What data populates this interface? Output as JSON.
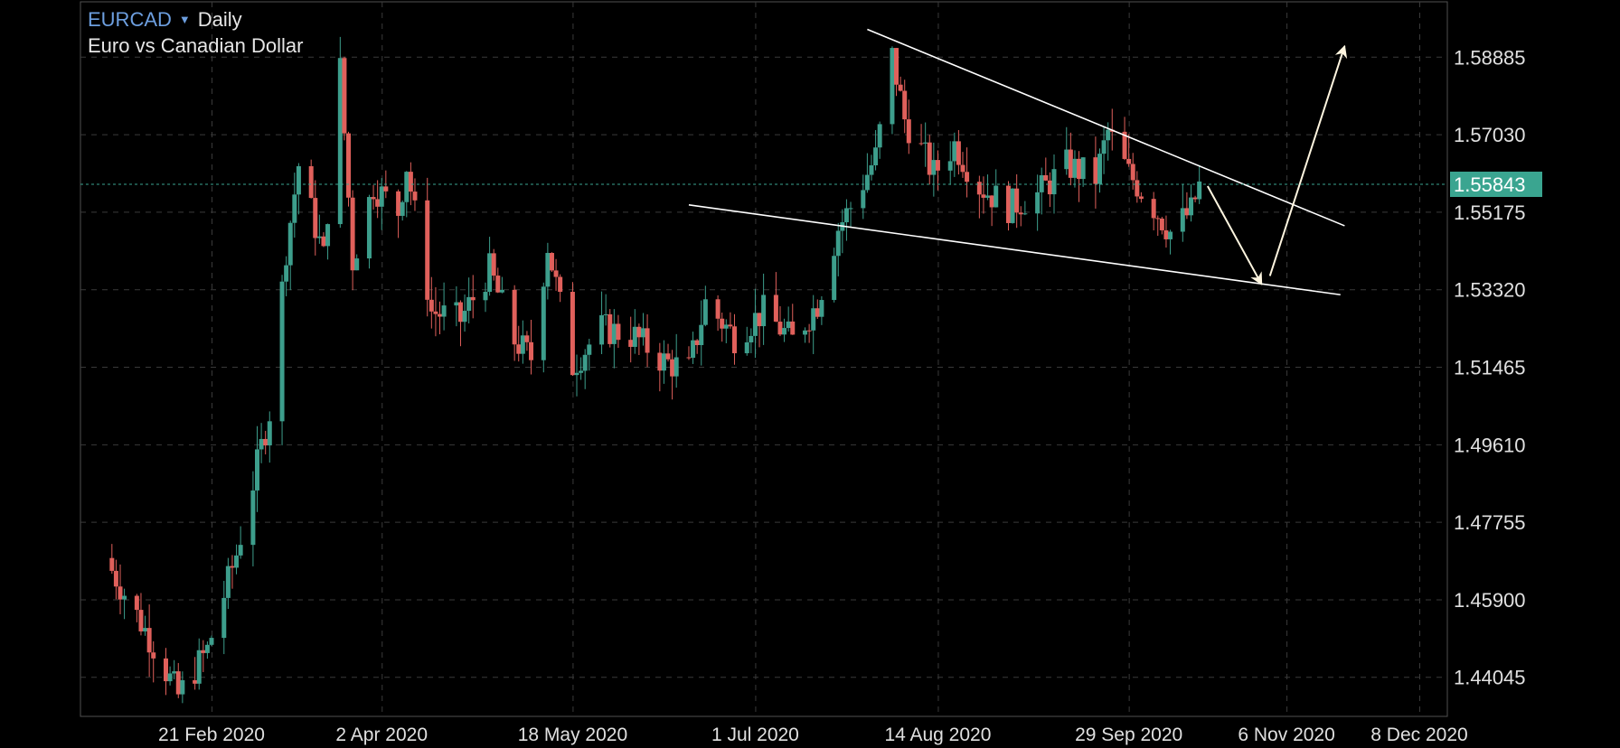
{
  "header": {
    "symbol": "EURCAD",
    "timeframe": "Daily",
    "description": "Euro vs Canadian Dollar",
    "dropdown_icon": "chevron-down-icon"
  },
  "colors": {
    "background": "#000000",
    "grid": "#3a3a3a",
    "bullish": "#3d9e8c",
    "bearish": "#e0605b",
    "current_price_bg": "#3aa590",
    "current_price_line": "#3aa590",
    "axis_text": "#e0e0e0",
    "drawings": "#ffffff",
    "arrows": "#fff6e0",
    "symbol": "#6d9fe0"
  },
  "chart_data": {
    "type": "candlestick",
    "title": "EURCAD Daily",
    "subtitle": "Euro vs Canadian Dollar",
    "grid": true,
    "ylim": [
      1.4311,
      1.6021
    ],
    "y_ticks": [
      1.58885,
      1.5703,
      1.55175,
      1.5332,
      1.51465,
      1.4961,
      1.47755,
      1.459,
      1.44045
    ],
    "y_tick_labels": [
      "1.58885",
      "1.57030",
      "1.55175",
      "1.53320",
      "1.51465",
      "1.49610",
      "1.47755",
      "1.45900",
      "1.44045"
    ],
    "x_tick_labels": [
      "21 Feb 2020",
      "2 Apr 2020",
      "18 May 2020",
      "1 Jul 2020",
      "14 Aug 2020",
      "29 Sep 2020",
      "6 Nov 2020",
      "8 Dec 2020"
    ],
    "current_price": 1.55843,
    "current_price_label": "1.55843",
    "ohlc_keypoints": [
      [
        "2020-01-28",
        1.466
      ],
      [
        "2020-02-06",
        1.45
      ],
      [
        "2020-02-13",
        1.436
      ],
      [
        "2020-02-20",
        1.447
      ],
      [
        "2020-02-27",
        1.47
      ],
      [
        "2020-03-06",
        1.504
      ],
      [
        "2020-03-10",
        1.543
      ],
      [
        "2020-03-13",
        1.563
      ],
      [
        "2020-03-19",
        1.541
      ],
      [
        "2020-03-23",
        1.586
      ],
      [
        "2020-03-26",
        1.54
      ],
      [
        "2020-03-31",
        1.558
      ],
      [
        "2020-04-06",
        1.552
      ],
      [
        "2020-04-08",
        1.563
      ],
      [
        "2020-04-14",
        1.528
      ],
      [
        "2020-04-21",
        1.526
      ],
      [
        "2020-04-28",
        1.538
      ],
      [
        "2020-05-04",
        1.521
      ],
      [
        "2020-05-08",
        1.517
      ],
      [
        "2020-05-12",
        1.544
      ],
      [
        "2020-05-18",
        1.515
      ],
      [
        "2020-05-25",
        1.524
      ],
      [
        "2020-06-02",
        1.522
      ],
      [
        "2020-06-09",
        1.516
      ],
      [
        "2020-06-15",
        1.514
      ],
      [
        "2020-06-19",
        1.53
      ],
      [
        "2020-06-26",
        1.522
      ],
      [
        "2020-07-03",
        1.528
      ],
      [
        "2020-07-10",
        1.521
      ],
      [
        "2020-07-16",
        1.53
      ],
      [
        "2020-07-21",
        1.548
      ],
      [
        "2020-07-24",
        1.553
      ],
      [
        "2020-07-30",
        1.565
      ],
      [
        "2020-08-03",
        1.589
      ],
      [
        "2020-08-06",
        1.574
      ],
      [
        "2020-08-13",
        1.561
      ],
      [
        "2020-08-18",
        1.568
      ],
      [
        "2020-08-24",
        1.558
      ],
      [
        "2020-08-31",
        1.553
      ],
      [
        "2020-09-07",
        1.556
      ],
      [
        "2020-09-14",
        1.563
      ],
      [
        "2020-09-21",
        1.56
      ],
      [
        "2020-09-24",
        1.571
      ],
      [
        "2020-09-29",
        1.561
      ],
      [
        "2020-10-05",
        1.553
      ],
      [
        "2020-10-09",
        1.547
      ],
      [
        "2020-10-14",
        1.552
      ],
      [
        "2020-10-16",
        1.558
      ]
    ],
    "drawings": [
      {
        "type": "trendline",
        "from": [
          "2020-07-28",
          1.5955
        ],
        "to": [
          "2020-11-20",
          1.5485
        ]
      },
      {
        "type": "trendline",
        "from": [
          "2020-06-15",
          1.5535
        ],
        "to": [
          "2020-11-19",
          1.532
        ]
      },
      {
        "type": "arrow",
        "from": [
          "2020-10-18",
          1.558
        ],
        "to": [
          "2020-10-31",
          1.5345
        ]
      },
      {
        "type": "arrow",
        "from": [
          "2020-11-02",
          1.5365
        ],
        "to": [
          "2020-11-20",
          1.5915
        ]
      }
    ]
  }
}
